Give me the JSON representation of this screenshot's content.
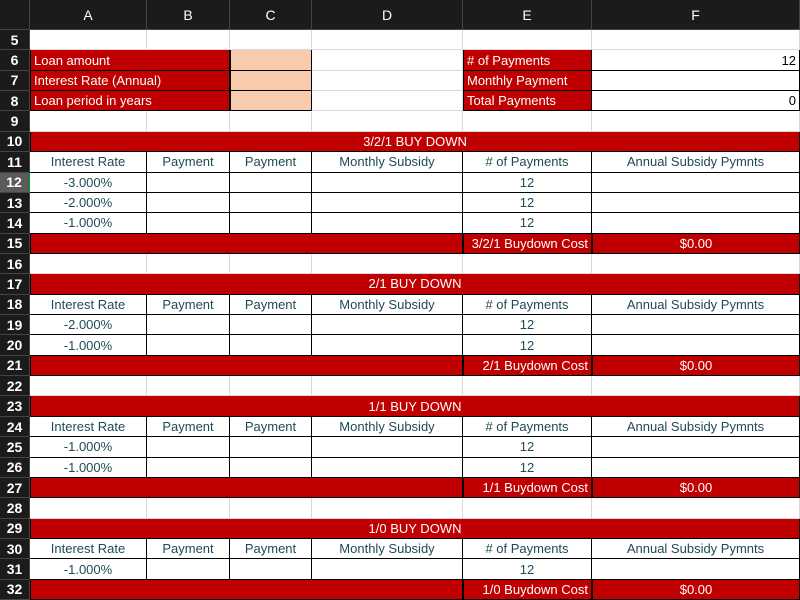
{
  "columns": [
    "A",
    "B",
    "C",
    "D",
    "E",
    "F"
  ],
  "selected_cell": "A12",
  "colors": {
    "red": "#c00000",
    "input": "#f8cbad",
    "header_bg": "#1b1b1b",
    "text": "#1f4a55"
  },
  "inputs": {
    "loan_amount_label": "Loan amount",
    "interest_rate_label": "Interest Rate (Annual)",
    "loan_period_label": "Loan period in years",
    "num_payments_label": "# of Payments",
    "num_payments_value": "12",
    "monthly_payment_label": "Monthly Payment",
    "total_payments_label": "Total Payments",
    "total_payments_value": "0"
  },
  "table_headers": [
    "Interest Rate",
    "Payment",
    "Payment",
    "Monthly Subsidy",
    "# of Payments",
    "Annual Subsidy Pymnts"
  ],
  "sections": [
    {
      "title": "3/2/1 BUY DOWN",
      "title_row": 10,
      "rates": [
        "-3.000%",
        "-2.000%",
        "-1.000%"
      ],
      "payments": [
        "12",
        "12",
        "12"
      ],
      "cost_label": "3/2/1 Buydown Cost",
      "cost_value": "$0.00"
    },
    {
      "title": "2/1 BUY DOWN",
      "title_row": 17,
      "rates": [
        "-2.000%",
        "-1.000%"
      ],
      "payments": [
        "12",
        "12"
      ],
      "cost_label": "2/1 Buydown Cost",
      "cost_value": "$0.00"
    },
    {
      "title": "1/1 BUY DOWN",
      "title_row": 23,
      "rates": [
        "-1.000%",
        "-1.000%"
      ],
      "payments": [
        "12",
        "12"
      ],
      "cost_label": "1/1 Buydown Cost",
      "cost_value": "$0.00"
    },
    {
      "title": "1/0 BUY DOWN",
      "title_row": 29,
      "rates": [
        "-1.000%"
      ],
      "payments": [
        "12"
      ],
      "cost_label": "1/0 Buydown Cost",
      "cost_value": "$0.00"
    }
  ]
}
